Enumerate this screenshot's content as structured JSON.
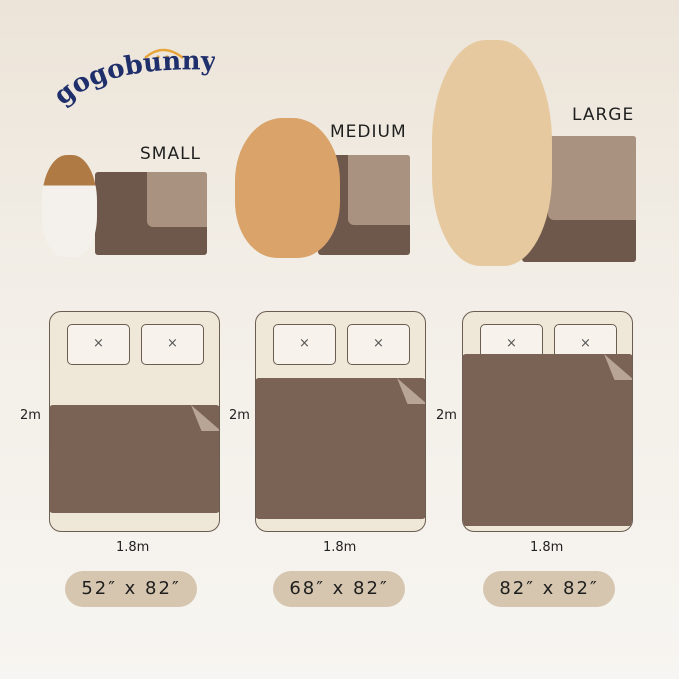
{
  "brand": {
    "logo_text": "gogobunny",
    "colors": {
      "navy": "#1f2f6b",
      "orange": "#e8a53a"
    }
  },
  "sizes": [
    {
      "label": "SMALL",
      "height": "2m",
      "width": "1.8m",
      "dimensions": "52″ x 82″"
    },
    {
      "label": "MEDIUM",
      "height": "2m",
      "width": "1.8m",
      "dimensions": "68″ x 82″"
    },
    {
      "label": "LARGE",
      "height": "2m",
      "width": "1.8m",
      "dimensions": "82″ x 82″"
    }
  ],
  "pillow_mark": "×",
  "colors": {
    "pad_dark": "#7a6255",
    "pad_light": "#b8a596",
    "bed": "#efe7d8",
    "pill": "#d6c6af"
  }
}
